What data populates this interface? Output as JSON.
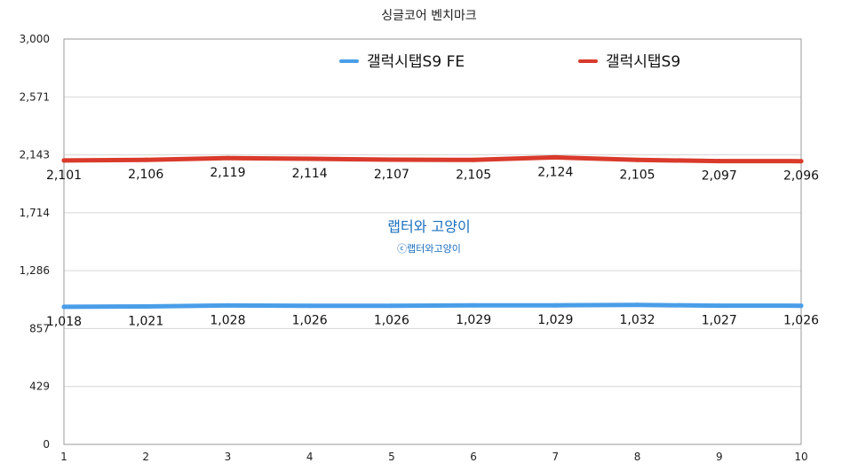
{
  "chart_data": {
    "type": "line",
    "title": "싱글코어 벤치마크",
    "categories": [
      "1",
      "2",
      "3",
      "4",
      "5",
      "6",
      "7",
      "8",
      "9",
      "10"
    ],
    "y_ticks": [
      "0",
      "429",
      "857",
      "1,286",
      "1,714",
      "2,143",
      "2,571",
      "3,000"
    ],
    "ylim": [
      0,
      3000
    ],
    "grid": true,
    "legend_position": "top",
    "series": [
      {
        "name": "갤럭시탭S9 FE",
        "color": "#4a9ee8",
        "values": [
          1018,
          1021,
          1028,
          1026,
          1026,
          1029,
          1029,
          1032,
          1027,
          1026
        ],
        "labels": [
          "1,018",
          "1,021",
          "1,028",
          "1,026",
          "1,026",
          "1,029",
          "1,029",
          "1,032",
          "1,027",
          "1,026"
        ]
      },
      {
        "name": "갤럭시탭S9",
        "color": "#d93a2b",
        "values": [
          2101,
          2106,
          2119,
          2114,
          2107,
          2105,
          2124,
          2105,
          2097,
          2096
        ],
        "labels": [
          "2,101",
          "2,106",
          "2,119",
          "2,114",
          "2,107",
          "2,105",
          "2,124",
          "2,105",
          "2,097",
          "2,096"
        ]
      }
    ]
  },
  "watermark": {
    "main": "랩터와 고양이",
    "sub": "ⓒ랩터와고양이"
  }
}
